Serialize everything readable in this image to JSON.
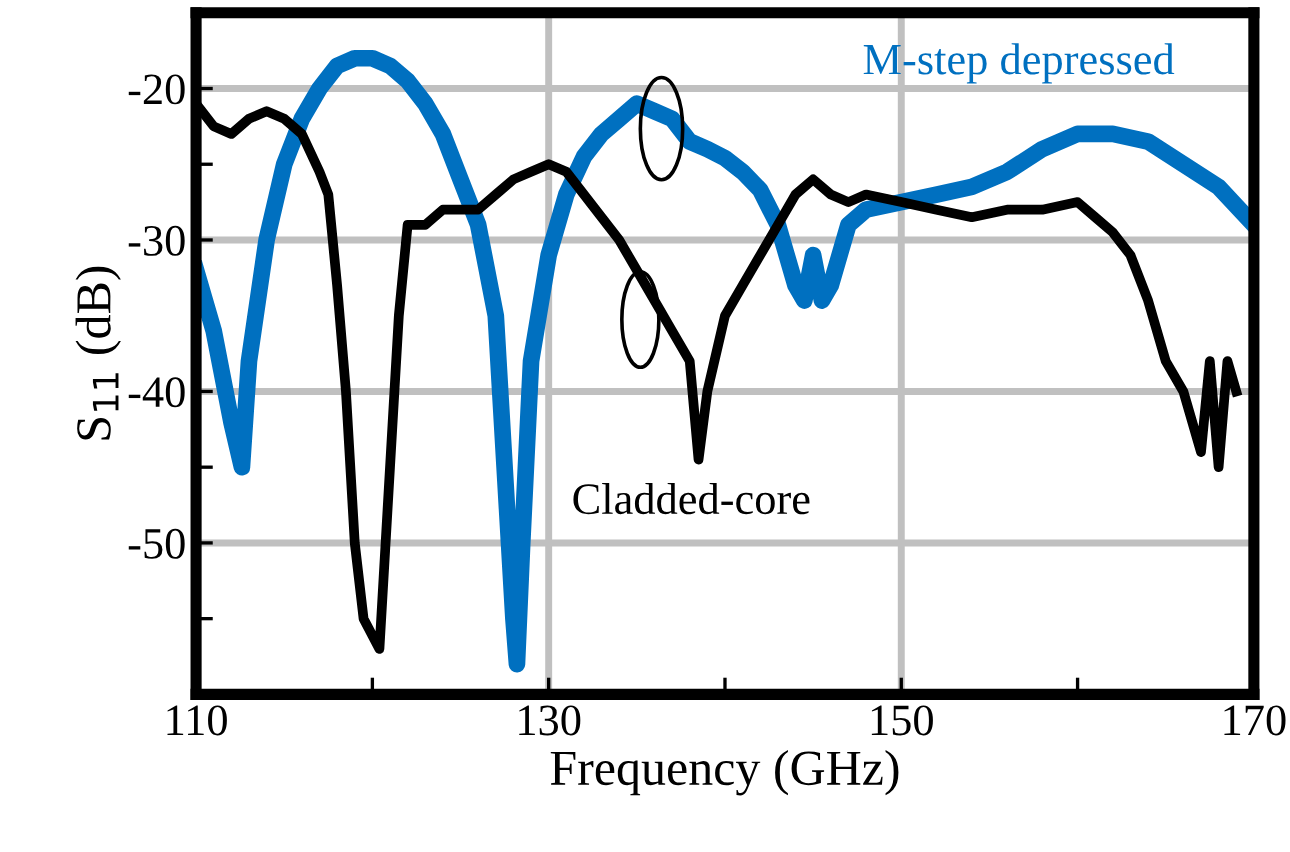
{
  "chart_data": {
    "type": "line",
    "xlabel": "Frequency (GHz)",
    "ylabel": "S$_{11}$ (dB)",
    "xlim": [
      110,
      170
    ],
    "ylim": [
      -60,
      -15
    ],
    "xticks": [
      110,
      {
        "value": 120,
        "label": null
      },
      130,
      {
        "value": 140,
        "label": null
      },
      150,
      {
        "value": 160,
        "label": null
      },
      170
    ],
    "yticks": [
      {
        "value": -55,
        "label": null
      },
      -50,
      {
        "value": -45,
        "label": null
      },
      -40,
      {
        "value": -35,
        "label": null
      },
      -30,
      {
        "value": -25,
        "label": null
      },
      -20
    ],
    "grid": true,
    "legend": false,
    "marker": "none",
    "line_style": "solid",
    "series": [
      {
        "name": "M-step depressed",
        "color": "#0070c0",
        "x": [
          110,
          111,
          112,
          112.6,
          113,
          114,
          115,
          116,
          117,
          118,
          119,
          120,
          121,
          122,
          123,
          124,
          125,
          126,
          127,
          127.5,
          128,
          128.2,
          128.5,
          129,
          130,
          131,
          132,
          133,
          134,
          135,
          136,
          137,
          138,
          139,
          140,
          141,
          142,
          143,
          144,
          144.5,
          145,
          145.5,
          146,
          147,
          148,
          150,
          152,
          154,
          156,
          158,
          160,
          162,
          164,
          166,
          168,
          170
        ],
        "values": [
          -32,
          -36,
          -42,
          -45,
          -38,
          -30,
          -25,
          -22,
          -20,
          -18.5,
          -18,
          -18,
          -18.5,
          -19.5,
          -21,
          -23,
          -26,
          -29,
          -35,
          -45,
          -55,
          -58,
          -50,
          -38,
          -31,
          -27,
          -24.5,
          -23,
          -22,
          -21,
          -21.5,
          -22,
          -23.5,
          -24,
          -24.6,
          -25.5,
          -26.7,
          -29,
          -33,
          -34,
          -31,
          -34,
          -33,
          -29,
          -28,
          -27.5,
          -27,
          -26.5,
          -25.5,
          -24,
          -23,
          -23,
          -23.5,
          -25,
          -26.5,
          -29
        ]
      },
      {
        "name": "Cladded-core",
        "color": "#000000",
        "x": [
          110,
          111,
          112,
          113,
          114,
          115,
          116,
          117,
          117.5,
          118,
          118.5,
          119,
          119.5,
          120.4,
          121,
          121.5,
          122,
          123,
          124,
          125,
          126,
          127,
          128,
          129,
          130,
          131,
          132,
          133,
          134,
          135,
          136,
          137,
          138,
          138.5,
          139,
          140,
          141,
          142,
          143,
          144,
          145,
          146,
          147,
          148,
          150,
          152,
          154,
          156,
          158,
          160,
          161,
          162,
          163,
          164,
          165,
          166,
          167,
          167.5,
          168,
          168.5,
          169
        ],
        "values": [
          -21,
          -22.5,
          -23,
          -22,
          -21.5,
          -22,
          -23,
          -25.5,
          -27,
          -33,
          -40,
          -50,
          -55,
          -57,
          -45,
          -35,
          -29,
          -29,
          -28,
          -28,
          -28,
          -27,
          -26,
          -25.5,
          -25,
          -25.5,
          -27,
          -28.5,
          -30,
          -32,
          -34,
          -36,
          -38,
          -44.5,
          -40,
          -35,
          -33,
          -31,
          -29,
          -27,
          -26,
          -27,
          -27.5,
          -27,
          -27.5,
          -28,
          -28.5,
          -28,
          -28,
          -27.5,
          -28.5,
          -29.5,
          -31,
          -34,
          -38,
          -40,
          -44,
          -38,
          -45,
          -38,
          -40
        ]
      }
    ]
  }
}
